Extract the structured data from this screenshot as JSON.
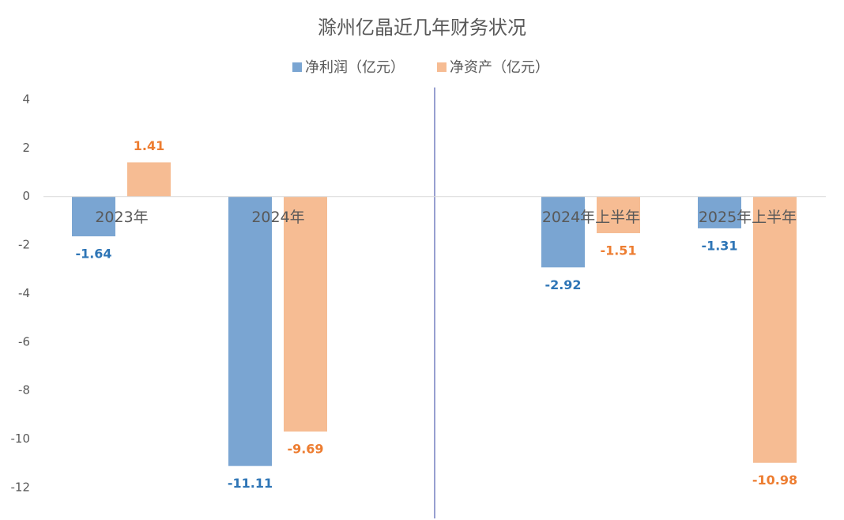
{
  "chart_data": {
    "type": "bar",
    "title": "滁州亿晶近几年财务状况",
    "categories": [
      "2023年",
      "2024年",
      null,
      "2024年上半年",
      "2025年上半年"
    ],
    "series": [
      {
        "name": "净利润（亿元）",
        "color": "#7aa5d2",
        "label_color": "#2e75b6",
        "values": [
          -1.64,
          -11.11,
          null,
          -2.92,
          -1.31
        ]
      },
      {
        "name": "净资产（亿元）",
        "color": "#f6bc93",
        "label_color": "#ed7d31",
        "values": [
          1.41,
          -9.69,
          null,
          -1.51,
          -10.98
        ]
      }
    ],
    "ylim": [
      -13,
      4.5
    ],
    "yticks": [
      4,
      2,
      0,
      -2,
      -4,
      -6,
      -8,
      -10,
      -12
    ],
    "grid": false
  }
}
